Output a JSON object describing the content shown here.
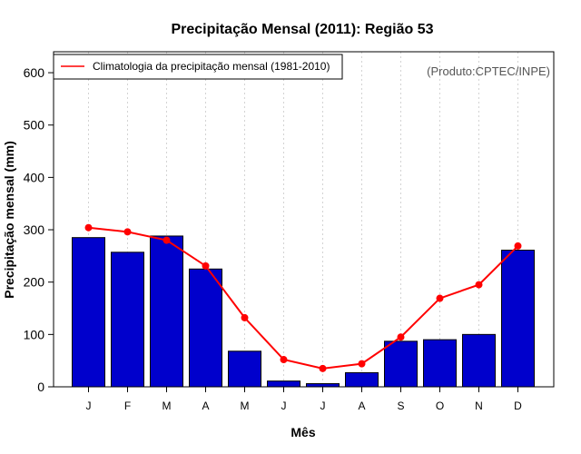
{
  "chart_data": {
    "type": "bar",
    "title": "Precipitação Mensal (2011): Região 53",
    "xlabel": "Mês",
    "ylabel": "Precipitação mensal (mm)",
    "ylim": [
      0,
      640
    ],
    "yticks": [
      0,
      100,
      200,
      300,
      400,
      500,
      600
    ],
    "categories": [
      "J",
      "F",
      "M",
      "A",
      "M",
      "J",
      "J",
      "A",
      "S",
      "O",
      "N",
      "D"
    ],
    "series": [
      {
        "name": "Precipitação mensal (2011)",
        "kind": "bar",
        "color": "#0000CC",
        "values": [
          285,
          257,
          288,
          225,
          68,
          11,
          6,
          27,
          87,
          90,
          100,
          261
        ]
      },
      {
        "name": "Climatologia da precipitação mensal (1981-2010)",
        "kind": "line",
        "color": "#FF0000",
        "values": [
          304,
          296,
          280,
          231,
          132,
          52,
          35,
          44,
          95,
          169,
          195,
          269
        ]
      }
    ],
    "legend": {
      "label": "Climatologia da precipitação mensal (1981-2010)",
      "position": "top-left"
    },
    "source_note": "(Produto:CPTEC/INPE)",
    "grid": "vertical dotted",
    "colors": {
      "bar": "#0000CC",
      "line": "#FF0000",
      "grid": "#D3D3D3",
      "axis": "#000000",
      "note": "#555555"
    }
  }
}
